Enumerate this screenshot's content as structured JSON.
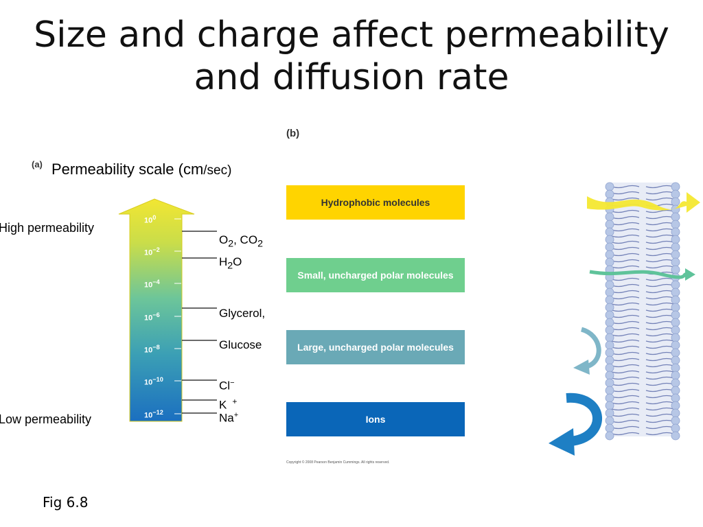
{
  "title_line1": "Size and charge affect permeability",
  "title_line2": "and diffusion rate",
  "panel_a": {
    "tag": "(a)",
    "scale_title": "Permeability scale",
    "units_open": " (cm",
    "units_rest": "/sec)",
    "high_label": "High permeability",
    "low_label": "Low permeability",
    "ticks": [
      {
        "base": "10",
        "exp": "0"
      },
      {
        "base": "10",
        "exp": "−2"
      },
      {
        "base": "10",
        "exp": "−4"
      },
      {
        "base": "10",
        "exp": "−6"
      },
      {
        "base": "10",
        "exp": "−8"
      },
      {
        "base": "10",
        "exp": "−10"
      },
      {
        "base": "10",
        "exp": "−12"
      }
    ],
    "molecules": {
      "o2_co2": {
        "o": "O",
        "o_sub": "2",
        "sep": ", CO",
        "co_sub": "2"
      },
      "h2o": {
        "h": "H",
        "h_sub": "2",
        "o": "O"
      },
      "glycerol": "Glycerol,",
      "glucose": "Glucose",
      "cl": {
        "base": "Cl",
        "sup": "−"
      },
      "k": {
        "base": "K",
        "sup": "+"
      },
      "na": {
        "base": "Na",
        "sup": "+"
      }
    }
  },
  "panel_b": {
    "tag": "(b)",
    "bars": [
      {
        "label": "Hydrophobic molecules",
        "color": "#ffd400",
        "text_color": "#333333"
      },
      {
        "label": "Small, uncharged polar molecules",
        "color": "#6fcf8e",
        "text_color": "#ffffff"
      },
      {
        "label": "Large, uncharged polar molecules",
        "color": "#6aa9b6",
        "text_color": "#ffffff"
      },
      {
        "label": "Ions",
        "color": "#0a66b8",
        "text_color": "#ffffff"
      }
    ],
    "copyright": "Copyright © 2008 Pearson Benjamin Cummings. All rights reserved."
  },
  "caption": "Fig 6.8",
  "colors": {
    "arrow_top": "#f4e832",
    "arrow_mid": "#5fc39a",
    "arrow_bottom": "#1e7fc4",
    "membrane_head": "#b7c7e6",
    "membrane_tail": "#5566a8"
  }
}
